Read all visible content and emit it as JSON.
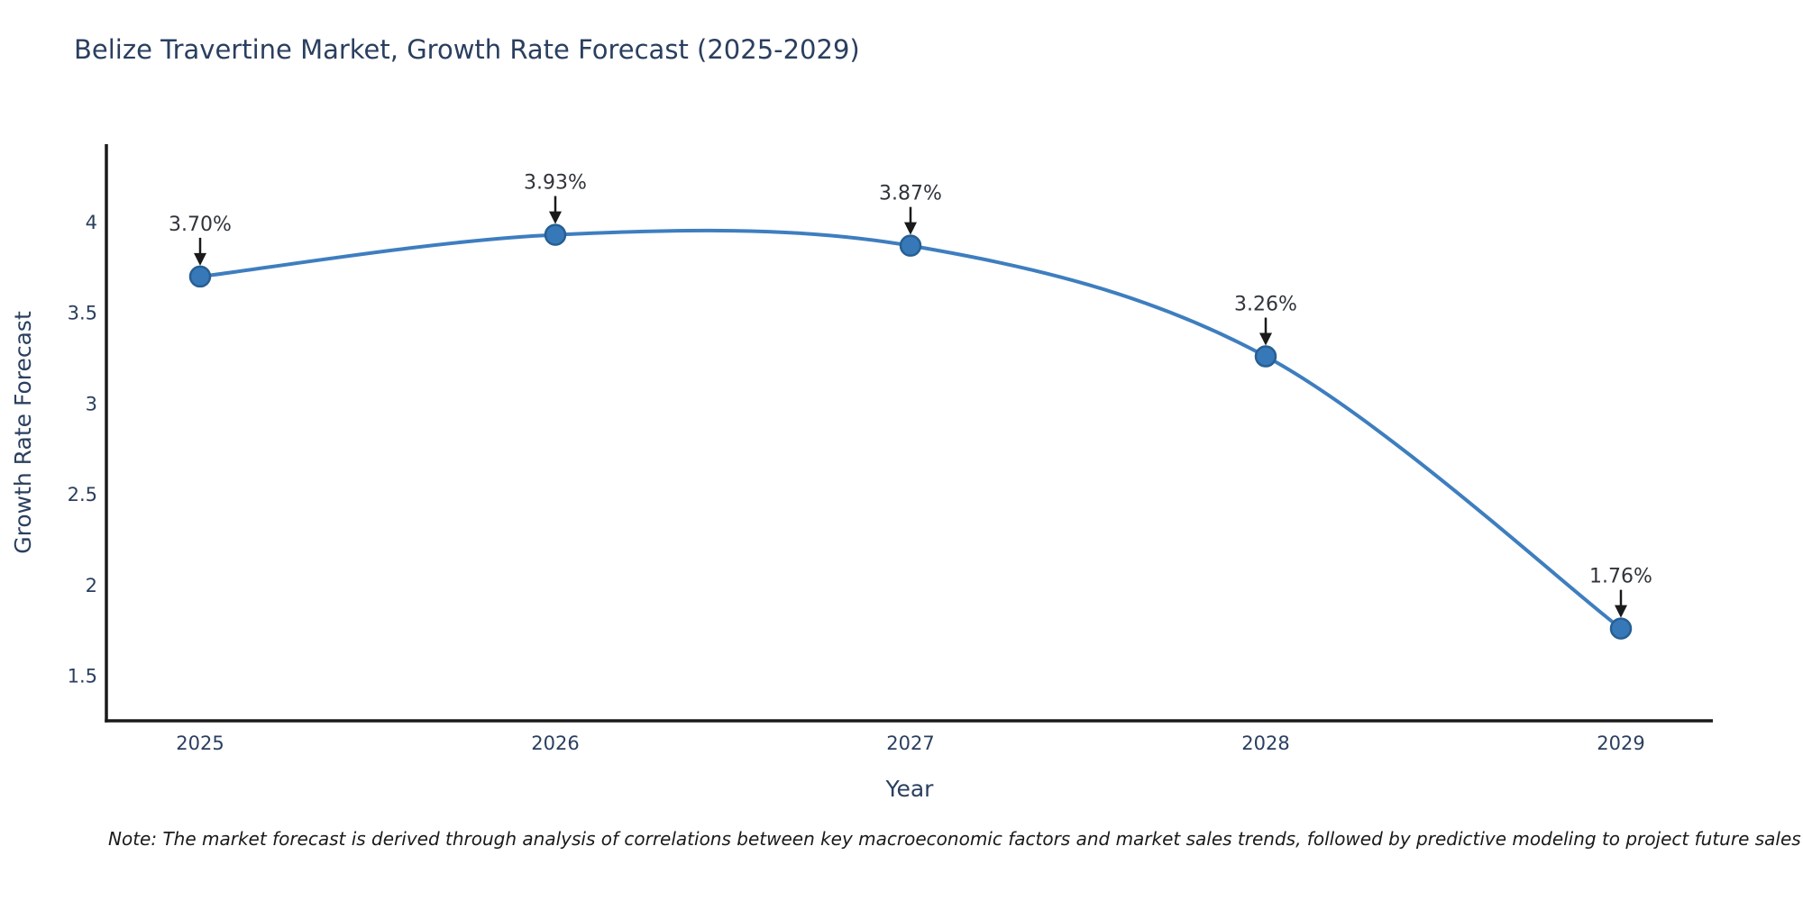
{
  "title": "Belize Travertine Market, Growth Rate Forecast (2025-2029)",
  "note": "Note: The market forecast is derived through analysis of correlations between key macroeconomic factors and market sales trends, followed by predictive modeling to project future sales",
  "chart_data": {
    "type": "line",
    "line_shape": "spline",
    "x": [
      2025,
      2026,
      2027,
      2028,
      2029
    ],
    "x_tick_labels": [
      "2025",
      "2026",
      "2027",
      "2028",
      "2029"
    ],
    "series": [
      {
        "name": "Growth Rate Forecast",
        "values": [
          3.7,
          3.93,
          3.87,
          3.26,
          1.76
        ]
      }
    ],
    "point_labels": [
      "3.70%",
      "3.93%",
      "3.87%",
      "3.26%",
      "1.76%"
    ],
    "title": "Belize Travertine Market, Growth Rate Forecast (2025-2029)",
    "xlabel": "Year",
    "ylabel": "Growth Rate Forecast",
    "y_ticks": [
      1.5,
      2,
      2.5,
      3,
      3.5,
      4
    ],
    "y_tick_labels": [
      "1.5",
      "2",
      "2.5",
      "3",
      "3.5",
      "4"
    ],
    "ylim": [
      1.25,
      4.43
    ],
    "xlim": [
      2024.73,
      2029.26
    ],
    "grid": false,
    "legend": false,
    "colors": {
      "line": "#3e7ebf",
      "marker_fill": "#3779b8",
      "marker_edge": "#275f93",
      "axis_line": "#1a1a1a",
      "axis_text": "#2a3f5f",
      "annotation_text": "#30343b",
      "annotation_arrow": "#1a1a1a",
      "background": "#ffffff"
    }
  }
}
